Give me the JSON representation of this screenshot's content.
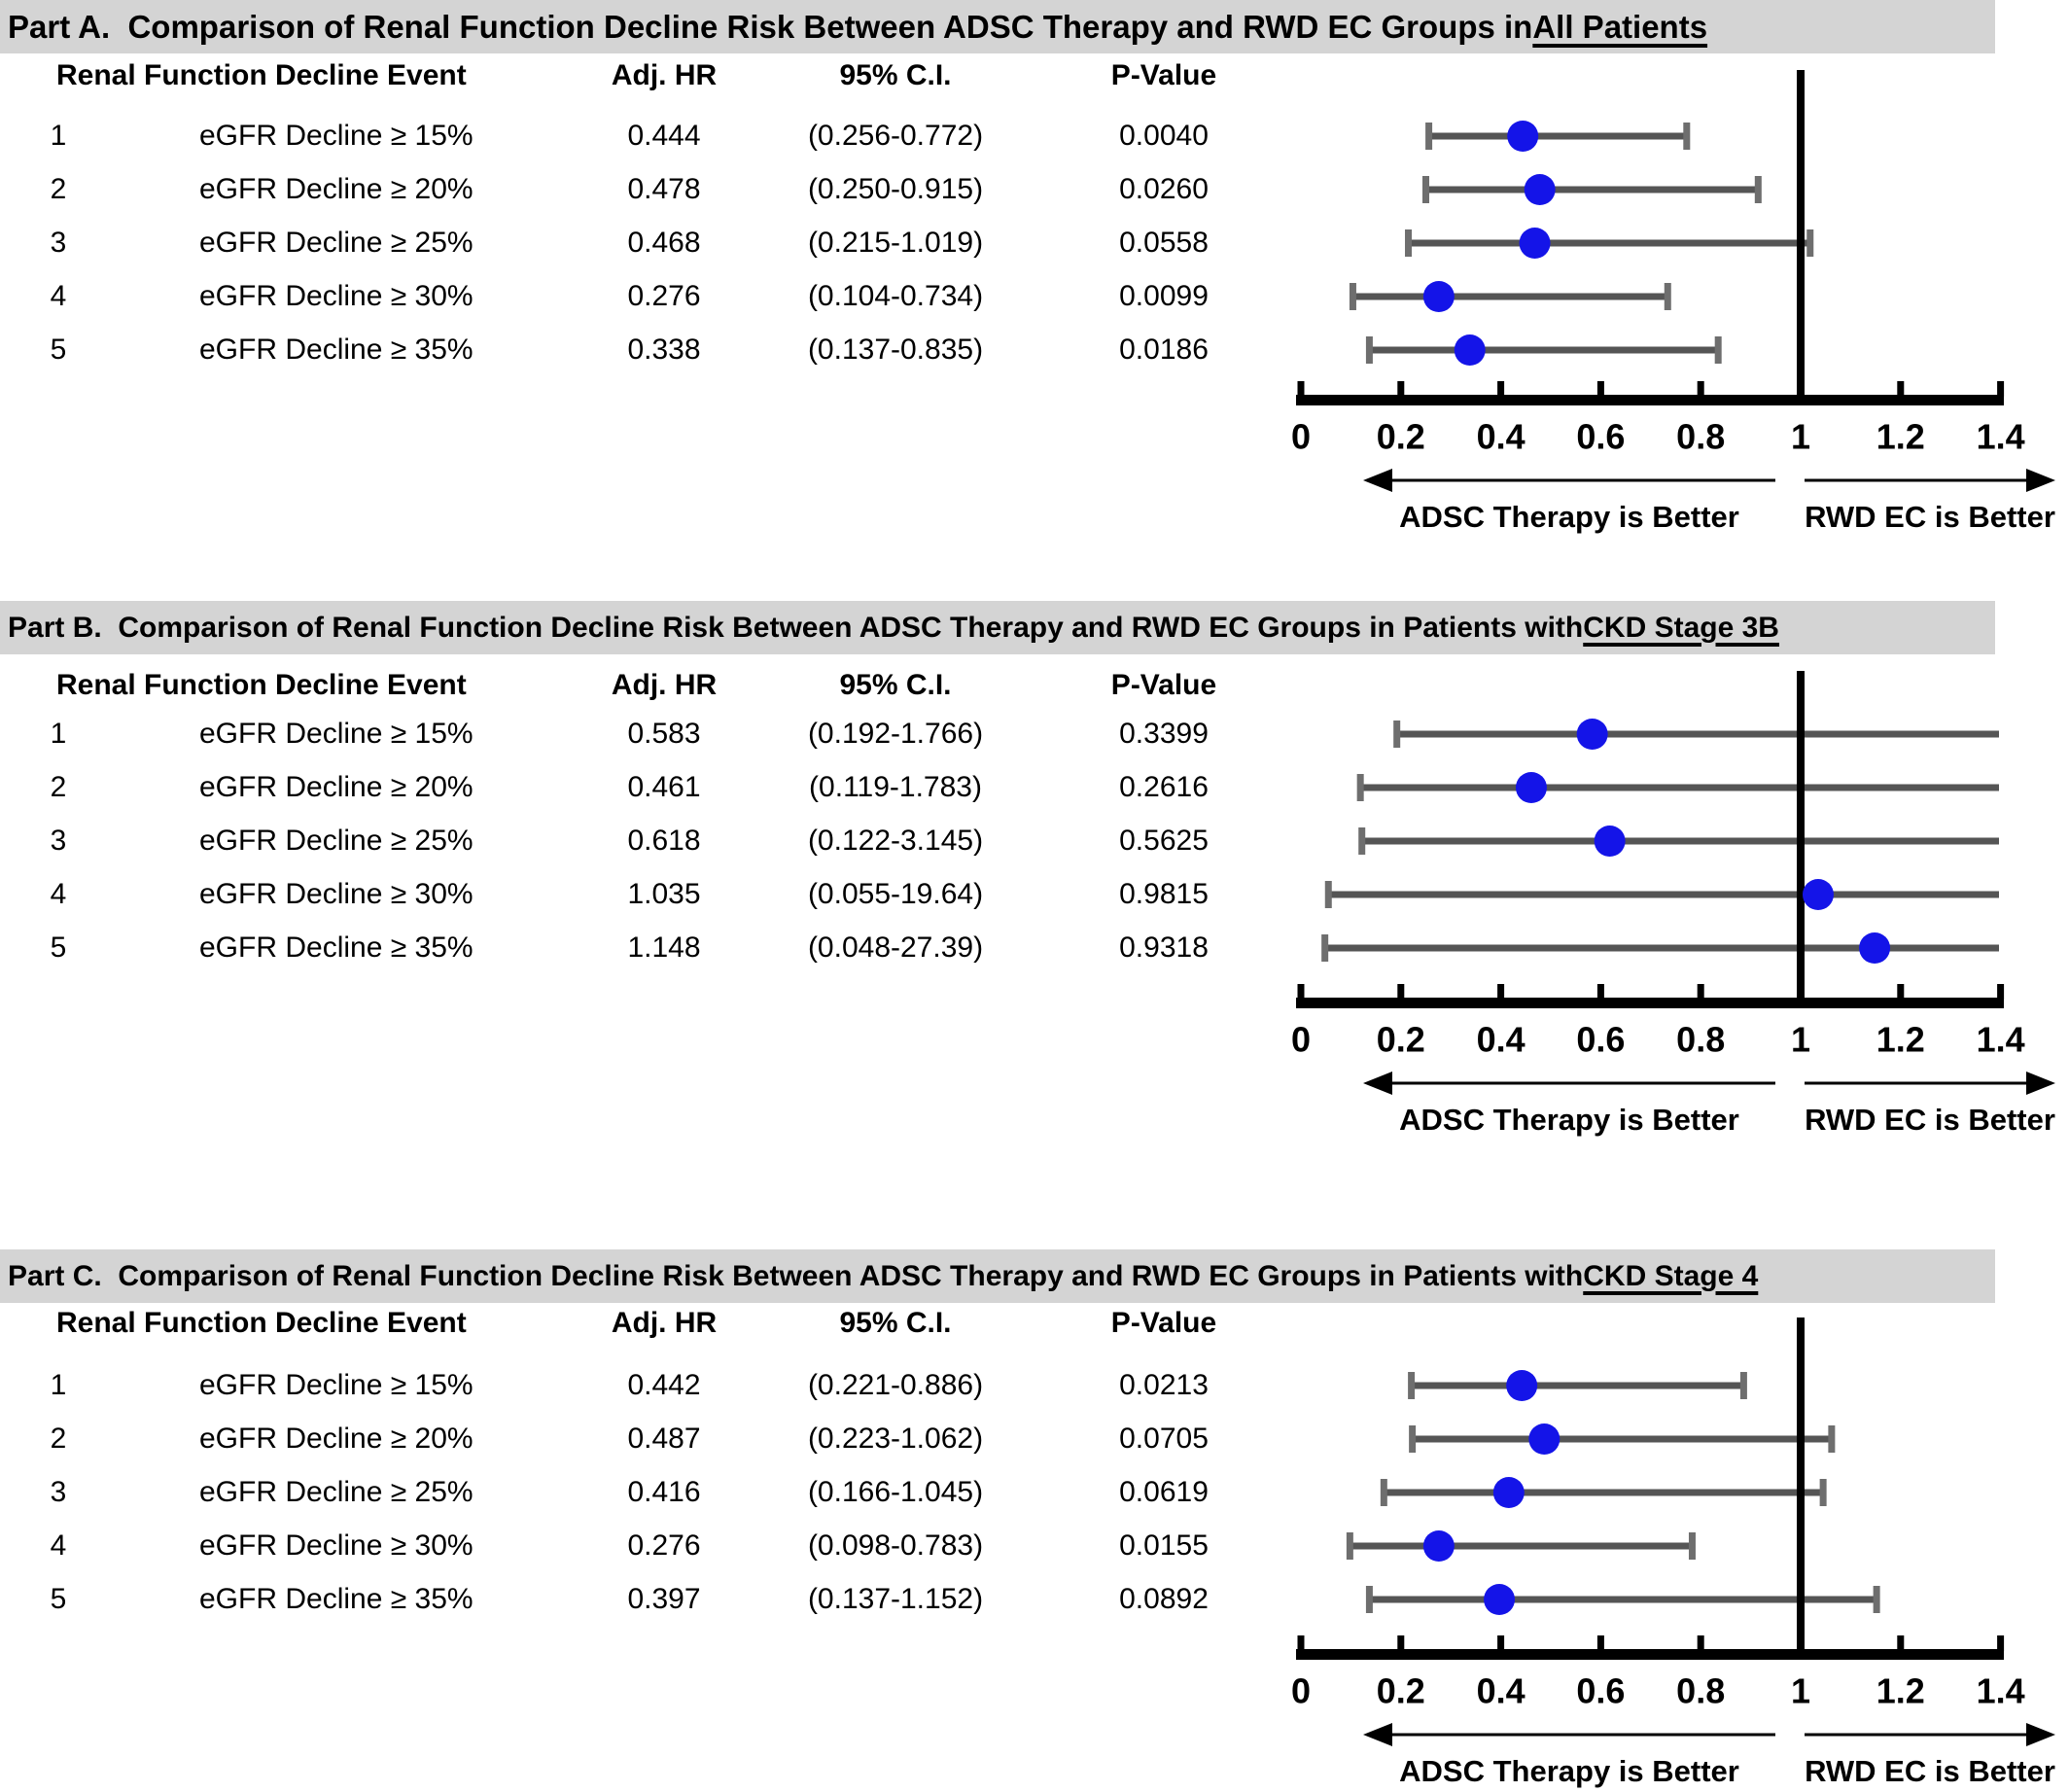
{
  "figure_title": "Forest plots comparing renal function decline risk between ADSC Therapy and RWD EC groups",
  "colors": {
    "marker": "#1414e8",
    "error_bar": "#555555",
    "error_cap": "#6e6e6e",
    "reference_line": "#000000",
    "axis": "#000000",
    "section_header_bg": "#d4d4d4",
    "text": "#000000",
    "background": "#ffffff"
  },
  "chart_data": [
    {
      "type": "forest_plot",
      "part_label": "Part A.",
      "title": "Comparison of Renal Function Decline Risk Between ADSC Therapy and RWD EC Groups in ",
      "title_underlined": "All Patients",
      "columns": {
        "event": "Renal Function Decline Event",
        "hr": "Adj. HR",
        "ci": "95% C.I.",
        "p": "P-Value"
      },
      "rows": [
        {
          "n": "1",
          "event": "eGFR Decline ≥ 15%",
          "adj_hr": "0.444",
          "ci_text": "(0.256-0.772)",
          "ci_low": 0.256,
          "ci_high": 0.772,
          "p_value": "0.0040"
        },
        {
          "n": "2",
          "event": "eGFR Decline ≥ 20%",
          "adj_hr": "0.478",
          "ci_text": "(0.250-0.915)",
          "ci_low": 0.25,
          "ci_high": 0.915,
          "p_value": "0.0260"
        },
        {
          "n": "3",
          "event": "eGFR Decline ≥ 25%",
          "adj_hr": "0.468",
          "ci_text": "(0.215-1.019)",
          "ci_low": 0.215,
          "ci_high": 1.019,
          "p_value": "0.0558"
        },
        {
          "n": "4",
          "event": "eGFR Decline ≥ 30%",
          "adj_hr": "0.276",
          "ci_text": "(0.104-0.734)",
          "ci_low": 0.104,
          "ci_high": 0.734,
          "p_value": "0.0099"
        },
        {
          "n": "5",
          "event": "eGFR Decline ≥ 35%",
          "adj_hr": "0.338",
          "ci_text": "(0.137-0.835)",
          "ci_low": 0.137,
          "ci_high": 0.835,
          "p_value": "0.0186"
        }
      ],
      "xlim": [
        0,
        1.4
      ],
      "xticks": [
        "0",
        "0.2",
        "0.4",
        "0.6",
        "0.8",
        "1",
        "1.2",
        "1.4"
      ],
      "reference_value": 1,
      "arrow_left_label": "ADSC Therapy  is Better",
      "arrow_right_label": "RWD EC is Better"
    },
    {
      "type": "forest_plot",
      "part_label": "Part B.",
      "title": "Comparison of Renal Function Decline Risk Between ADSC Therapy and RWD EC Groups in Patients with ",
      "title_underlined": "CKD Stage 3B",
      "columns": {
        "event": "Renal Function Decline Event",
        "hr": "Adj. HR",
        "ci": "95% C.I.",
        "p": "P-Value"
      },
      "rows": [
        {
          "n": "1",
          "event": "eGFR Decline ≥ 15%",
          "adj_hr": "0.583",
          "ci_text": "(0.192-1.766)",
          "ci_low": 0.192,
          "ci_high": 1.766,
          "p_value": "0.3399"
        },
        {
          "n": "2",
          "event": "eGFR Decline ≥ 20%",
          "adj_hr": "0.461",
          "ci_text": "(0.119-1.783)",
          "ci_low": 0.119,
          "ci_high": 1.783,
          "p_value": "0.2616"
        },
        {
          "n": "3",
          "event": "eGFR Decline ≥ 25%",
          "adj_hr": "0.618",
          "ci_text": "(0.122-3.145)",
          "ci_low": 0.122,
          "ci_high": 3.145,
          "p_value": "0.5625"
        },
        {
          "n": "4",
          "event": "eGFR Decline ≥ 30%",
          "adj_hr": "1.035",
          "ci_text": "(0.055-19.64)",
          "ci_low": 0.055,
          "ci_high": 19.64,
          "p_value": "0.9815"
        },
        {
          "n": "5",
          "event": "eGFR Decline ≥ 35%",
          "adj_hr": "1.148",
          "ci_text": "(0.048-27.39)",
          "ci_low": 0.048,
          "ci_high": 27.39,
          "p_value": "0.9318"
        }
      ],
      "xlim": [
        0,
        1.4
      ],
      "xticks": [
        "0",
        "0.2",
        "0.4",
        "0.6",
        "0.8",
        "1",
        "1.2",
        "1.4"
      ],
      "reference_value": 1,
      "arrow_left_label": "ADSC Therapy is Better",
      "arrow_right_label": "RWD EC is Better"
    },
    {
      "type": "forest_plot",
      "part_label": "Part C.",
      "title": "Comparison of Renal Function Decline Risk Between ADSC Therapy and RWD EC Groups in Patients with ",
      "title_underlined": "CKD Stage 4",
      "columns": {
        "event": "Renal Function Decline Event",
        "hr": "Adj. HR",
        "ci": "95% C.I.",
        "p": "P-Value"
      },
      "rows": [
        {
          "n": "1",
          "event": "eGFR Decline ≥ 15%",
          "adj_hr": "0.442",
          "ci_text": "(0.221-0.886)",
          "ci_low": 0.221,
          "ci_high": 0.886,
          "p_value": "0.0213"
        },
        {
          "n": "2",
          "event": "eGFR Decline ≥ 20%",
          "adj_hr": "0.487",
          "ci_text": "(0.223-1.062)",
          "ci_low": 0.223,
          "ci_high": 1.062,
          "p_value": "0.0705"
        },
        {
          "n": "3",
          "event": "eGFR Decline ≥ 25%",
          "adj_hr": "0.416",
          "ci_text": "(0.166-1.045)",
          "ci_low": 0.166,
          "ci_high": 1.045,
          "p_value": "0.0619"
        },
        {
          "n": "4",
          "event": "eGFR Decline ≥ 30%",
          "adj_hr": "0.276",
          "ci_text": "(0.098-0.783)",
          "ci_low": 0.098,
          "ci_high": 0.783,
          "p_value": "0.0155"
        },
        {
          "n": "5",
          "event": "eGFR Decline ≥ 35%",
          "adj_hr": "0.397",
          "ci_text": "(0.137-1.152)",
          "ci_low": 0.137,
          "ci_high": 1.152,
          "p_value": "0.0892"
        }
      ],
      "xlim": [
        0,
        1.4
      ],
      "xticks": [
        "0",
        "0.2",
        "0.4",
        "0.6",
        "0.8",
        "1",
        "1.2",
        "1.4"
      ],
      "reference_value": 1,
      "arrow_left_label": "ADSC Therapy is Better",
      "arrow_right_label": "RWD EC is Better"
    }
  ]
}
